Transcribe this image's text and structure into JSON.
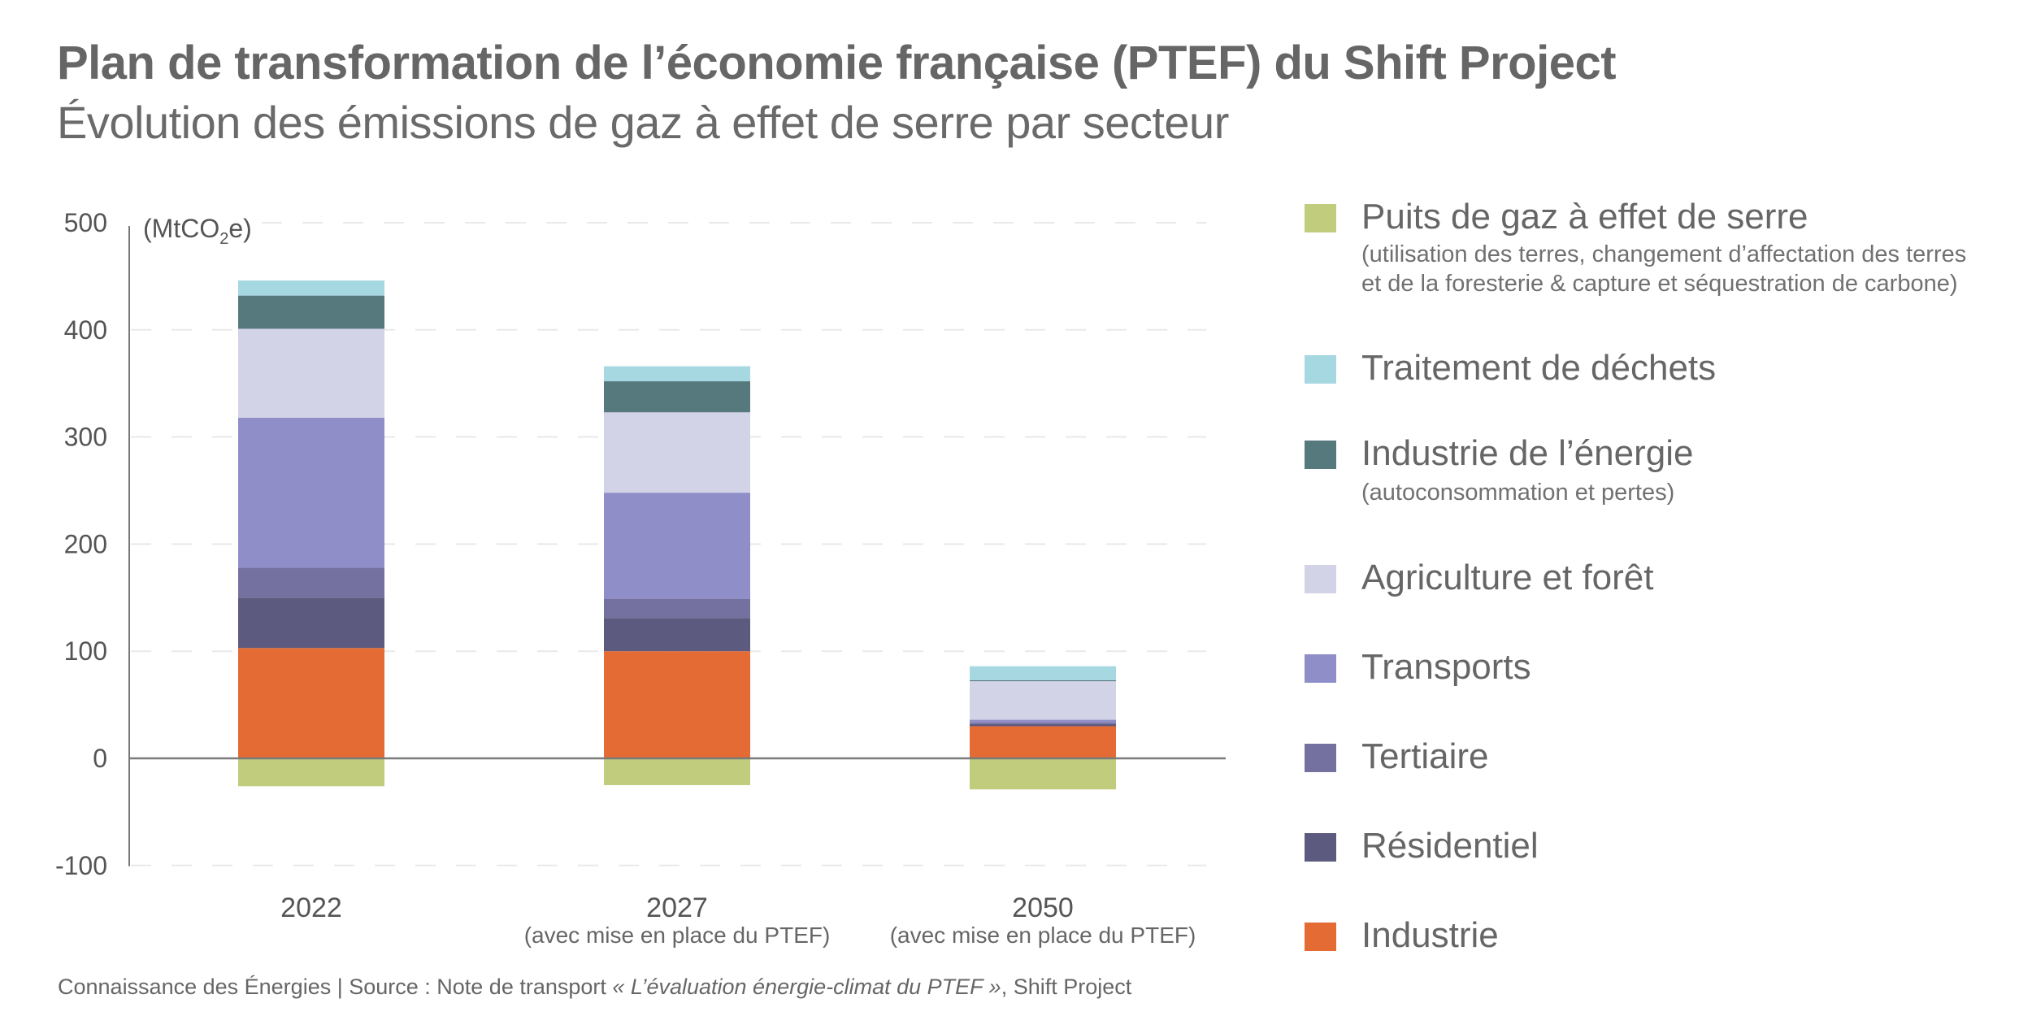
{
  "header": {
    "title": "Plan de transformation de l’économie française (PTEF) du Shift Project",
    "subtitle": "Évolution des émissions de gaz à effet de serre par secteur"
  },
  "chart_data": {
    "type": "bar",
    "stacked": true,
    "title": "Plan de transformation de l’économie française (PTEF) du Shift Project",
    "subtitle": "Évolution des émissions de gaz à effet de serre par secteur",
    "ylabel": "(MtCO2e)",
    "unit_prefix": "(MtCO",
    "unit_sub": "2",
    "unit_suffix": "e)",
    "xlabel": "",
    "ylim": [
      -100,
      500
    ],
    "yticks": [
      500,
      400,
      300,
      200,
      100,
      0,
      -100
    ],
    "grid": true,
    "legend_position": "right",
    "categories": [
      "2022",
      "2027",
      "2050"
    ],
    "category_notes": [
      "",
      "(avec mise en place du PTEF)",
      "(avec mise en place du PTEF)"
    ],
    "series": [
      {
        "name": "Industrie",
        "color": "#e46b33",
        "values": [
          103,
          100,
          30
        ]
      },
      {
        "name": "Résidentiel",
        "color": "#5d5a7f",
        "values": [
          47,
          31,
          2
        ]
      },
      {
        "name": "Tertiaire",
        "color": "#7471a0",
        "values": [
          28,
          18,
          1.5
        ]
      },
      {
        "name": "Transports",
        "color": "#8f8ec8",
        "values": [
          140,
          99,
          2.5
        ]
      },
      {
        "name": "Agriculture et forêt",
        "color": "#d3d3e8",
        "values": [
          83,
          75,
          36
        ]
      },
      {
        "name": "Industrie de l’énergie",
        "note": "(autoconsommation et pertes)",
        "color": "#56797d",
        "values": [
          31,
          29,
          1
        ]
      },
      {
        "name": "Traitement de déchets",
        "color": "#a6d8e2",
        "values": [
          14,
          14,
          13
        ]
      },
      {
        "name": "Puits de gaz à effet de serre",
        "note": "(utilisation des terres, changement d’affectation des terres et de la foresterie & capture et séquestration de carbone)",
        "color": "#c1cc7d",
        "values": [
          -26,
          -25,
          -29
        ]
      }
    ]
  },
  "legend": {
    "items": [
      {
        "label": "Puits de gaz à effet de serre",
        "sub1": "(utilisation des terres, changement d’affectation des terres",
        "sub2": "et de la foresterie & capture et séquestration de carbone)",
        "color": "#c1cc7d"
      },
      {
        "label": "Traitement de déchets",
        "color": "#a6d8e2"
      },
      {
        "label": "Industrie de l’énergie",
        "sub1": "(autoconsommation et pertes)",
        "color": "#56797d"
      },
      {
        "label": "Agriculture et forêt",
        "color": "#d3d3e8"
      },
      {
        "label": "Transports",
        "color": "#8f8ec8"
      },
      {
        "label": "Tertiaire",
        "color": "#7471a0"
      },
      {
        "label": "Résidentiel",
        "color": "#5d5a7f"
      },
      {
        "label": "Industrie",
        "color": "#e46b33"
      }
    ]
  },
  "footer": {
    "prefix": "Connaissance des Énergies | Source :  Note de transport ",
    "italic": "« L’évaluation énergie-climat du PTEF »",
    "suffix": ", Shift Project"
  }
}
